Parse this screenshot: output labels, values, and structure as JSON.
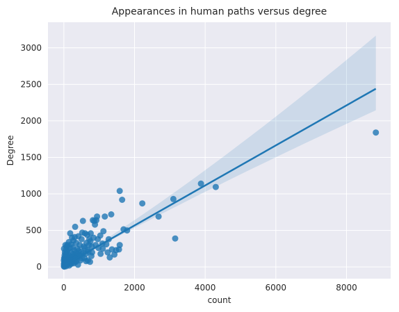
{
  "chart_data": {
    "type": "scatter",
    "title": "Appearances in human paths versus degree",
    "xlabel": "count",
    "ylabel": "Degree",
    "xlim": [
      -450,
      9250
    ],
    "ylim": [
      -160,
      3350
    ],
    "xticks": [
      0,
      2000,
      4000,
      6000,
      8000
    ],
    "yticks": [
      0,
      500,
      1000,
      1500,
      2000,
      2500,
      3000
    ],
    "grid": true,
    "background_color": "#eaeaf2",
    "point_color": "#1f77b4",
    "regression": {
      "x_range": [
        0,
        8830
      ],
      "intercept": 20,
      "slope": 0.274,
      "ci_upper_end": 3160,
      "ci_lower_end": 2150
    },
    "points": [
      [
        8830,
        1840
      ],
      [
        4300,
        1095
      ],
      [
        3880,
        1140
      ],
      [
        3150,
        390
      ],
      [
        3100,
        930
      ],
      [
        2680,
        690
      ],
      [
        2220,
        870
      ],
      [
        1790,
        500
      ],
      [
        1690,
        515
      ],
      [
        1650,
        920
      ],
      [
        1580,
        1040
      ],
      [
        1580,
        300
      ],
      [
        1560,
        240
      ],
      [
        1430,
        170
      ],
      [
        1360,
        240
      ],
      [
        1340,
        720
      ],
      [
        1300,
        130
      ],
      [
        1270,
        380
      ],
      [
        1160,
        690
      ],
      [
        1120,
        490
      ],
      [
        1100,
        250
      ],
      [
        1090,
        320
      ],
      [
        1030,
        430
      ],
      [
        960,
        380
      ],
      [
        940,
        690
      ],
      [
        920,
        640
      ],
      [
        880,
        580
      ],
      [
        860,
        630
      ],
      [
        820,
        640
      ],
      [
        790,
        280
      ],
      [
        780,
        150
      ],
      [
        760,
        460
      ],
      [
        740,
        70
      ],
      [
        720,
        380
      ],
      [
        700,
        210
      ],
      [
        680,
        90
      ],
      [
        660,
        440
      ],
      [
        640,
        330
      ],
      [
        620,
        180
      ],
      [
        600,
        460
      ],
      [
        580,
        120
      ],
      [
        560,
        280
      ],
      [
        540,
        630
      ],
      [
        520,
        470
      ],
      [
        500,
        380
      ],
      [
        490,
        210
      ],
      [
        470,
        90
      ],
      [
        450,
        300
      ],
      [
        430,
        150
      ],
      [
        410,
        420
      ],
      [
        400,
        30
      ],
      [
        390,
        250
      ],
      [
        370,
        180
      ],
      [
        350,
        330
      ],
      [
        340,
        70
      ],
      [
        320,
        550
      ],
      [
        310,
        410
      ],
      [
        300,
        120
      ],
      [
        290,
        230
      ],
      [
        280,
        50
      ],
      [
        270,
        360
      ],
      [
        260,
        180
      ],
      [
        250,
        270
      ],
      [
        240,
        80
      ],
      [
        230,
        400
      ],
      [
        220,
        140
      ],
      [
        210,
        310
      ],
      [
        200,
        40
      ],
      [
        190,
        200
      ],
      [
        180,
        460
      ],
      [
        170,
        100
      ],
      [
        160,
        260
      ],
      [
        150,
        20
      ],
      [
        140,
        340
      ],
      [
        130,
        160
      ],
      [
        120,
        70
      ],
      [
        110,
        230
      ],
      [
        100,
        300
      ],
      [
        95,
        120
      ],
      [
        90,
        40
      ],
      [
        85,
        200
      ],
      [
        80,
        280
      ],
      [
        75,
        90
      ],
      [
        70,
        150
      ],
      [
        65,
        10
      ],
      [
        60,
        240
      ],
      [
        55,
        60
      ],
      [
        50,
        180
      ],
      [
        45,
        300
      ],
      [
        40,
        110
      ],
      [
        35,
        30
      ],
      [
        30,
        200
      ],
      [
        25,
        80
      ],
      [
        20,
        160
      ],
      [
        15,
        20
      ],
      [
        10,
        60
      ],
      [
        8,
        120
      ],
      [
        5,
        250
      ],
      [
        3,
        10
      ],
      [
        2,
        40
      ],
      [
        1,
        90
      ],
      [
        12,
        5
      ],
      [
        18,
        45
      ],
      [
        28,
        130
      ],
      [
        42,
        70
      ],
      [
        58,
        100
      ],
      [
        72,
        35
      ],
      [
        88,
        60
      ],
      [
        105,
        90
      ],
      [
        125,
        40
      ],
      [
        145,
        110
      ],
      [
        165,
        60
      ],
      [
        185,
        130
      ],
      [
        205,
        90
      ],
      [
        225,
        60
      ],
      [
        245,
        140
      ],
      [
        265,
        100
      ],
      [
        285,
        70
      ],
      [
        305,
        160
      ],
      [
        325,
        110
      ],
      [
        345,
        200
      ],
      [
        365,
        90
      ],
      [
        385,
        140
      ],
      [
        420,
        220
      ],
      [
        460,
        160
      ],
      [
        510,
        120
      ],
      [
        550,
        190
      ],
      [
        590,
        260
      ],
      [
        630,
        80
      ],
      [
        670,
        230
      ],
      [
        710,
        300
      ],
      [
        750,
        350
      ],
      [
        800,
        200
      ],
      [
        840,
        400
      ],
      [
        900,
        300
      ],
      [
        980,
        260
      ],
      [
        1040,
        180
      ],
      [
        1200,
        310
      ],
      [
        1240,
        200
      ],
      [
        1480,
        230
      ]
    ]
  }
}
